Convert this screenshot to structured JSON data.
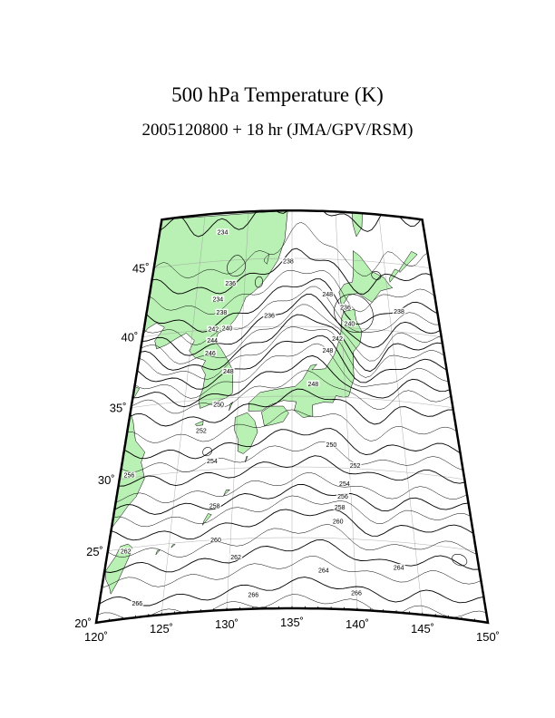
{
  "title": "500 hPa Temperature (K)",
  "subtitle": "2005120800 + 18 hr (JMA/GPV/RSM)",
  "map": {
    "projection": "conic",
    "lon_range": [
      120,
      150
    ],
    "lat_range": [
      20,
      47
    ],
    "land_color": "#b9f0b4",
    "frame_color": "#000000",
    "lon_ticks": [
      {
        "value": 120,
        "label": "120˚"
      },
      {
        "value": 125,
        "label": "125˚"
      },
      {
        "value": 130,
        "label": "130˚"
      },
      {
        "value": 135,
        "label": "135˚"
      },
      {
        "value": 140,
        "label": "140˚"
      },
      {
        "value": 145,
        "label": "145˚"
      },
      {
        "value": 150,
        "label": "150˚"
      }
    ],
    "lat_ticks": [
      {
        "value": 20,
        "label": "20˚"
      },
      {
        "value": 25,
        "label": "25˚"
      },
      {
        "value": 30,
        "label": "30˚"
      },
      {
        "value": 35,
        "label": "35˚"
      },
      {
        "value": 40,
        "label": "40˚"
      },
      {
        "value": 45,
        "label": "45˚"
      }
    ],
    "contour_labels": [
      {
        "text": "234",
        "lon": 127.2,
        "lat": 46.2
      },
      {
        "text": "236",
        "lon": 128.5,
        "lat": 43.3
      },
      {
        "text": "234",
        "lon": 127.3,
        "lat": 42.2
      },
      {
        "text": "238",
        "lon": 127.8,
        "lat": 41.2
      },
      {
        "text": "236",
        "lon": 132.7,
        "lat": 40.8
      },
      {
        "text": "238",
        "lon": 134.6,
        "lat": 44.8
      },
      {
        "text": "242",
        "lon": 127.1,
        "lat": 40.0
      },
      {
        "text": "240",
        "lon": 128.5,
        "lat": 40.0
      },
      {
        "text": "244",
        "lon": 127.1,
        "lat": 39.2
      },
      {
        "text": "246",
        "lon": 127.0,
        "lat": 38.3
      },
      {
        "text": "248",
        "lon": 128.9,
        "lat": 36.9
      },
      {
        "text": "248",
        "lon": 138.7,
        "lat": 42.4
      },
      {
        "text": "240",
        "lon": 140.8,
        "lat": 40.3
      },
      {
        "text": "242",
        "lon": 139.5,
        "lat": 39.2
      },
      {
        "text": "248",
        "lon": 138.5,
        "lat": 38.3
      },
      {
        "text": "248",
        "lon": 137.0,
        "lat": 35.9
      },
      {
        "text": "238",
        "lon": 146.0,
        "lat": 41.5
      },
      {
        "text": "236",
        "lon": 140.5,
        "lat": 41.5
      },
      {
        "text": "250",
        "lon": 128.2,
        "lat": 34.6
      },
      {
        "text": "252",
        "lon": 126.8,
        "lat": 32.8
      },
      {
        "text": "254",
        "lon": 128.0,
        "lat": 30.6
      },
      {
        "text": "256",
        "lon": 120.8,
        "lat": 30.2
      },
      {
        "text": "258",
        "lon": 128.5,
        "lat": 27.4
      },
      {
        "text": "260",
        "lon": 128.8,
        "lat": 25.0
      },
      {
        "text": "262",
        "lon": 121.5,
        "lat": 24.8
      },
      {
        "text": "262",
        "lon": 130.5,
        "lat": 23.7
      },
      {
        "text": "264",
        "lon": 137.5,
        "lat": 22.7
      },
      {
        "text": "266",
        "lon": 123.0,
        "lat": 21.0
      },
      {
        "text": "266",
        "lon": 132.0,
        "lat": 21.0
      },
      {
        "text": "266",
        "lon": 140.0,
        "lat": 21.2
      },
      {
        "text": "250",
        "lon": 138.5,
        "lat": 31.6
      },
      {
        "text": "252",
        "lon": 140.5,
        "lat": 30.2
      },
      {
        "text": "254",
        "lon": 139.5,
        "lat": 28.9
      },
      {
        "text": "256",
        "lon": 139.3,
        "lat": 28.0
      },
      {
        "text": "258",
        "lon": 139.0,
        "lat": 27.2
      },
      {
        "text": "260",
        "lon": 138.8,
        "lat": 26.2
      },
      {
        "text": "264",
        "lon": 143.5,
        "lat": 23.2
      }
    ]
  }
}
